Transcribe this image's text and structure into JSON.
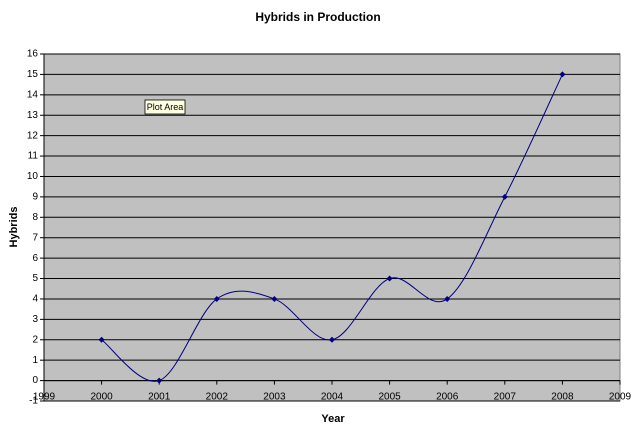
{
  "chart_data": {
    "type": "line",
    "title": "Hybrids in Production",
    "x_label": "Year",
    "y_label": "Hybrids",
    "x": [
      2000,
      2001,
      2002,
      2003,
      2004,
      2005,
      2006,
      2007,
      2008
    ],
    "values": [
      2,
      0,
      4,
      4,
      2,
      5,
      4,
      9,
      15
    ],
    "color": "#000080",
    "smooth": true,
    "markers": "diamond",
    "xlim": [
      1999,
      2009
    ],
    "xticks": [
      1999,
      2000,
      2001,
      2002,
      2003,
      2004,
      2005,
      2006,
      2007,
      2008,
      2009
    ],
    "ylim": [
      -1,
      16
    ],
    "yticks": [
      -1,
      0,
      1,
      2,
      3,
      4,
      5,
      6,
      7,
      8,
      9,
      10,
      11,
      12,
      13,
      14,
      15,
      16
    ],
    "grid": true,
    "plot_color": "#c0c0c0",
    "annotation": "Plot Area"
  }
}
